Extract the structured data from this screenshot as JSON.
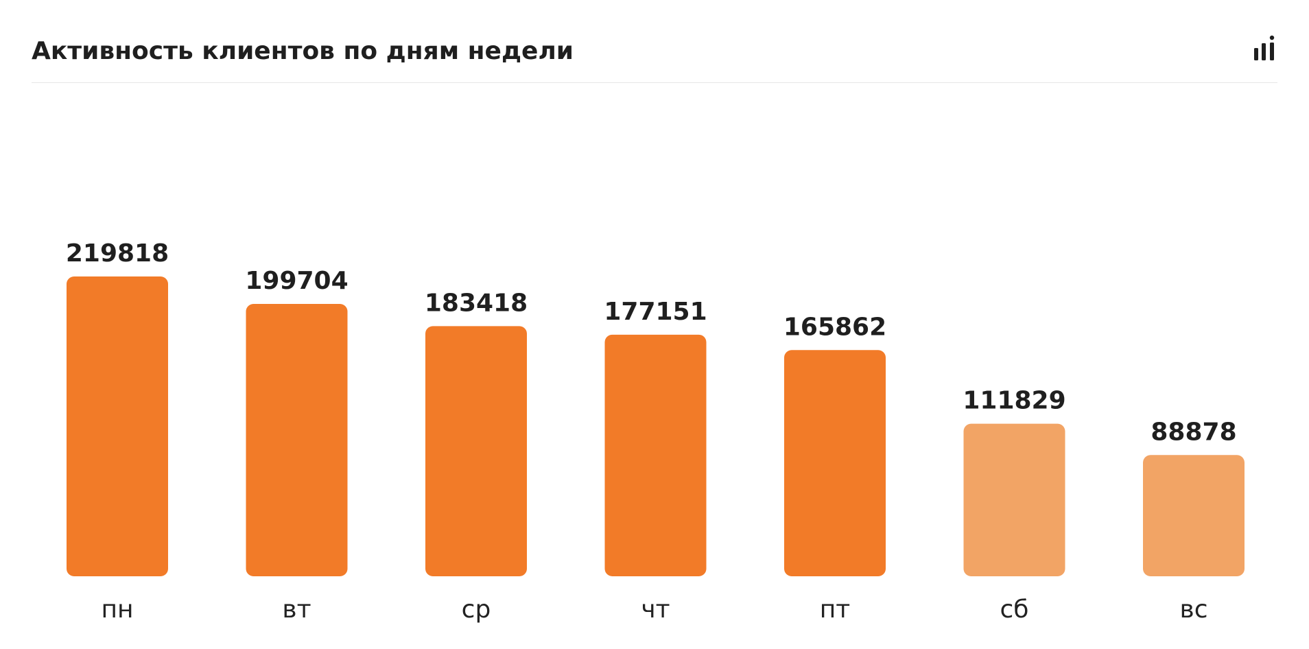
{
  "header": {
    "title": "Активность клиентов по дням недели",
    "icon": "bar-chart-icon"
  },
  "colors": {
    "weekday_bar": "#f27b28",
    "weekend_bar": "#f2a465",
    "text": "#1f1f1f",
    "divider": "#e6e6e6"
  },
  "chart_data": {
    "type": "bar",
    "title": "Активность клиентов по дням недели",
    "xlabel": "",
    "ylabel": "",
    "categories": [
      "пн",
      "вт",
      "ср",
      "чт",
      "пт",
      "сб",
      "вс"
    ],
    "values": [
      219818,
      199704,
      183418,
      177151,
      165862,
      111829,
      88878
    ],
    "highlight": [
      "weekday",
      "weekday",
      "weekday",
      "weekday",
      "weekday",
      "weekend",
      "weekend"
    ],
    "ylim": [
      0,
      219818
    ],
    "grid": false,
    "legend": "none",
    "data_labels": true
  }
}
